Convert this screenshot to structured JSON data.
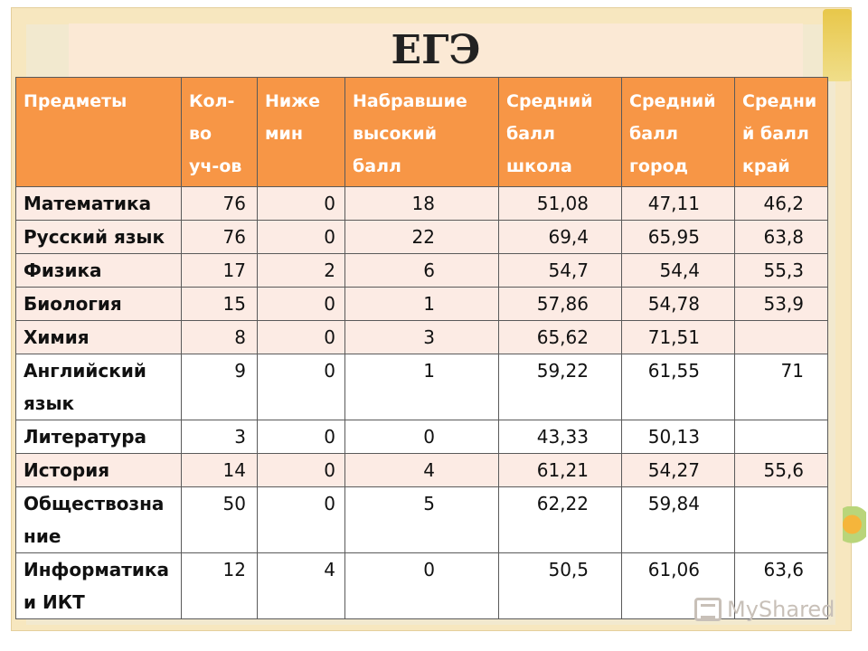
{
  "title": "ЕГЭ",
  "columns": [
    "Предметы",
    "Кол-\nво\nуч-ов",
    "Ниже\nмин",
    "Набравшие\nвысокий\nбалл",
    "Средний\nбалл\nшкола",
    "Средний\nбалл\nгород",
    "Средни\nй балл\nкрай"
  ],
  "rows": [
    [
      "Математика",
      "76",
      "0",
      "18",
      "51,08",
      "47,11",
      "46,2"
    ],
    [
      "Русский язык",
      "76",
      "0",
      "22",
      "69,4",
      "65,95",
      "63,8"
    ],
    [
      "Физика",
      "17",
      "2",
      "6",
      "54,7",
      "54,4",
      "55,3"
    ],
    [
      "Биология",
      "15",
      "0",
      "1",
      "57,86",
      "54,78",
      "53,9"
    ],
    [
      "Химия",
      "8",
      "0",
      "3",
      "65,62",
      "71,51",
      ""
    ],
    [
      "Английский\nязык",
      "9",
      "0",
      "1",
      "59,22",
      "61,55",
      "71"
    ],
    [
      "Литература",
      "3",
      "0",
      "0",
      "43,33",
      "50,13",
      ""
    ],
    [
      "История",
      "14",
      "0",
      "4",
      "61,21",
      "54,27",
      "55,6"
    ],
    [
      "Обществозна\nние",
      "50",
      "0",
      "5",
      "62,22",
      "59,84",
      ""
    ],
    [
      "Информатика\nи ИКТ",
      "12",
      "4",
      "0",
      "50,5",
      "61,06",
      "63,6"
    ]
  ],
  "watermark": "MyShared",
  "colors": {
    "header_bg": "#f79646",
    "row_tint": "#fcebe4",
    "frame_bg": "#f7e7bf"
  }
}
